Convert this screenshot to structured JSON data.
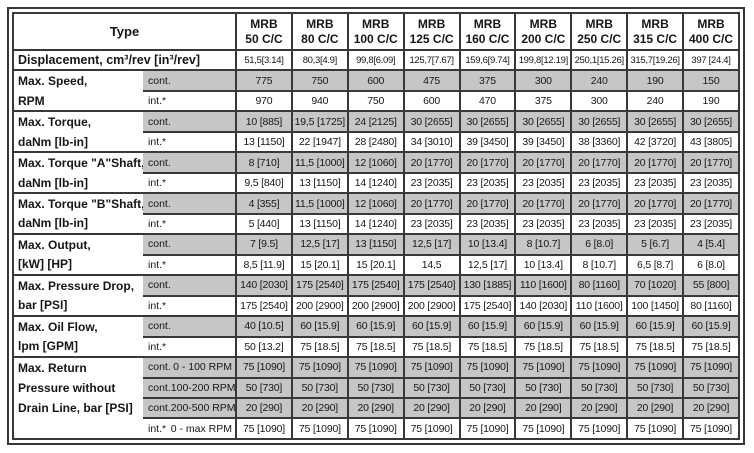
{
  "colors": {
    "shaded_row_bg": "#c6c6c6",
    "border": "#383838",
    "text": "#161616"
  },
  "table": {
    "corner_label": "Type",
    "columns": [
      {
        "line1": "MRB",
        "line2": "50 C/C"
      },
      {
        "line1": "MRB",
        "line2": "80 C/C"
      },
      {
        "line1": "MRB",
        "line2": "100 C/C"
      },
      {
        "line1": "MRB",
        "line2": "125 C/C"
      },
      {
        "line1": "MRB",
        "line2": "160 C/C"
      },
      {
        "line1": "MRB",
        "line2": "200 C/C"
      },
      {
        "line1": "MRB",
        "line2": "250 C/C"
      },
      {
        "line1": "MRB",
        "line2": "315 C/C"
      },
      {
        "line1": "MRB",
        "line2": "400 C/C"
      }
    ],
    "displacement_row": {
      "label": "Displacement, cm³/rev [in³/rev]",
      "values": [
        "51,5[3.14]",
        "80,3[4.9]",
        "99,8[6.09]",
        "125,7[7.67]",
        "159,6[9.74]",
        "199,8[12.19]",
        "250,1[15.26]",
        "315,7[19.26]",
        "397 [24.4]"
      ]
    },
    "sections": [
      {
        "name": "max-speed",
        "label_lines": [
          "Max. Speed,",
          "RPM"
        ],
        "rows": [
          {
            "condition": "cont.",
            "range": "",
            "shaded": true,
            "values": [
              "775",
              "750",
              "600",
              "475",
              "375",
              "300",
              "240",
              "190",
              "150"
            ]
          },
          {
            "condition": "int.*",
            "range": "",
            "shaded": false,
            "values": [
              "970",
              "940",
              "750",
              "600",
              "470",
              "375",
              "300",
              "240",
              "190"
            ]
          }
        ]
      },
      {
        "name": "max-torque",
        "label_lines": [
          "Max. Torque,",
          "daNm [lb-in]"
        ],
        "rows": [
          {
            "condition": "cont.",
            "range": "",
            "shaded": true,
            "values": [
              "10 [885]",
              "19,5 [1725]",
              "24 [2125]",
              "30 [2655]",
              "30 [2655]",
              "30 [2655]",
              "30 [2655]",
              "30 [2655]",
              "30 [2655]"
            ]
          },
          {
            "condition": "int.*",
            "range": "",
            "shaded": false,
            "values": [
              "13 [1150]",
              "22 [1947]",
              "28 [2480]",
              "34 [3010]",
              "39 [3450]",
              "39 [3450]",
              "38 [3360]",
              "42 [3720]",
              "43 [3805]"
            ]
          }
        ]
      },
      {
        "name": "max-torque-a-shaft",
        "label_lines": [
          "Max. Torque \"A\"Shaft,",
          "daNm [lb-in]"
        ],
        "rows": [
          {
            "condition": "cont.",
            "range": "",
            "shaded": true,
            "values": [
              "8 [710]",
              "11,5 [1000]",
              "12 [1060]",
              "20 [1770]",
              "20 [1770]",
              "20 [1770]",
              "20 [1770]",
              "20 [1770]",
              "20 [1770]"
            ]
          },
          {
            "condition": "int.*",
            "range": "",
            "shaded": false,
            "values": [
              "9,5 [840]",
              "13 [1150]",
              "14 [1240]",
              "23 [2035]",
              "23 [2035]",
              "23 [2035]",
              "23 [2035]",
              "23 [2035]",
              "23 [2035]"
            ]
          }
        ]
      },
      {
        "name": "max-torque-b-shaft",
        "label_lines": [
          "Max. Torque \"B\"Shaft,",
          "daNm [lb-in]"
        ],
        "rows": [
          {
            "condition": "cont.",
            "range": "",
            "shaded": true,
            "values": [
              "4 [355]",
              "11,5 [1000]",
              "12 [1060]",
              "20 [1770]",
              "20 [1770]",
              "20 [1770]",
              "20 [1770]",
              "20 [1770]",
              "20 [1770]"
            ]
          },
          {
            "condition": "int.*",
            "range": "",
            "shaded": false,
            "values": [
              "5 [440]",
              "13 [1150]",
              "14 [1240]",
              "23 [2035]",
              "23 [2035]",
              "23 [2035]",
              "23 [2035]",
              "23 [2035]",
              "23 [2035]"
            ]
          }
        ]
      },
      {
        "name": "max-output",
        "label_lines": [
          "Max. Output,",
          "[kW] [HP]"
        ],
        "rows": [
          {
            "condition": "cont.",
            "range": "",
            "shaded": true,
            "values": [
              "7 [9.5]",
              "12,5 [17]",
              "13 [1150]",
              "12,5 [17]",
              "10 [13.4]",
              "8 [10.7]",
              "6 [8.0]",
              "5 [6.7]",
              "4 [5.4]"
            ]
          },
          {
            "condition": "int.*",
            "range": "",
            "shaded": false,
            "values": [
              "8,5 [11.9]",
              "15 [20.1]",
              "15 [20.1]",
              "14,5",
              "12,5 [17]",
              "10 [13.4]",
              "8 [10.7]",
              "6,5 [8.7]",
              "6 [8.0]"
            ]
          }
        ]
      },
      {
        "name": "max-pressure-drop",
        "label_lines": [
          "Max. Pressure Drop,",
          "bar [PSI]"
        ],
        "rows": [
          {
            "condition": "cont.",
            "range": "",
            "shaded": true,
            "values": [
              "140 [2030]",
              "175 [2540]",
              "175 [2540]",
              "175 [2540]",
              "130 [1885]",
              "110 [1600]",
              "80 [1160]",
              "70 [1020]",
              "55 [800]"
            ]
          },
          {
            "condition": "int.*",
            "range": "",
            "shaded": false,
            "values": [
              "175 [2540]",
              "200 [2900]",
              "200 [2900]",
              "200 [2900]",
              "175 [2540]",
              "140 [2030]",
              "110 [1600]",
              "100 [1450]",
              "80 [1160]"
            ]
          }
        ]
      },
      {
        "name": "max-oil-flow",
        "label_lines": [
          "Max. Oil Flow,",
          "lpm [GPM]"
        ],
        "rows": [
          {
            "condition": "cont.",
            "range": "",
            "shaded": true,
            "values": [
              "40 [10.5]",
              "60 [15.9]",
              "60 [15.9]",
              "60 [15.9]",
              "60 [15.9]",
              "60 [15.9]",
              "60 [15.9]",
              "60 [15.9]",
              "60 [15.9]"
            ]
          },
          {
            "condition": "int.*",
            "range": "",
            "shaded": false,
            "values": [
              "50 [13.2]",
              "75 [18.5]",
              "75 [18.5]",
              "75 [18.5]",
              "75 [18.5]",
              "75 [18.5]",
              "75 [18.5]",
              "75 [18.5]",
              "75 [18.5]"
            ]
          }
        ]
      },
      {
        "name": "max-return-pressure",
        "label_lines": [
          "Max. Return",
          "Pressure without",
          "Drain Line, bar [PSI]"
        ],
        "rows": [
          {
            "condition": "cont.",
            "range": "0 - 100 RPM",
            "shaded": true,
            "values": [
              "75 [1090]",
              "75 [1090]",
              "75 [1090]",
              "75 [1090]",
              "75 [1090]",
              "75 [1090]",
              "75 [1090]",
              "75 [1090]",
              "75 [1090]"
            ]
          },
          {
            "condition": "cont.",
            "range": "100-200 RPM",
            "shaded": true,
            "values": [
              "50 [730]",
              "50 [730]",
              "50 [730]",
              "50 [730]",
              "50 [730]",
              "50 [730]",
              "50 [730]",
              "50 [730]",
              "50 [730]"
            ]
          },
          {
            "condition": "cont.",
            "range": "200-500 RPM",
            "shaded": true,
            "values": [
              "20 [290]",
              "20 [290]",
              "20 [290]",
              "20 [290]",
              "20 [290]",
              "20 [290]",
              "20 [290]",
              "20 [290]",
              "20 [290]"
            ]
          },
          {
            "condition": "int.*",
            "range": "0 - max RPM",
            "shaded": false,
            "values": [
              "75 [1090]",
              "75 [1090]",
              "75 [1090]",
              "75 [1090]",
              "75 [1090]",
              "75 [1090]",
              "75 [1090]",
              "75 [1090]",
              "75 [1090]"
            ]
          }
        ]
      }
    ]
  }
}
